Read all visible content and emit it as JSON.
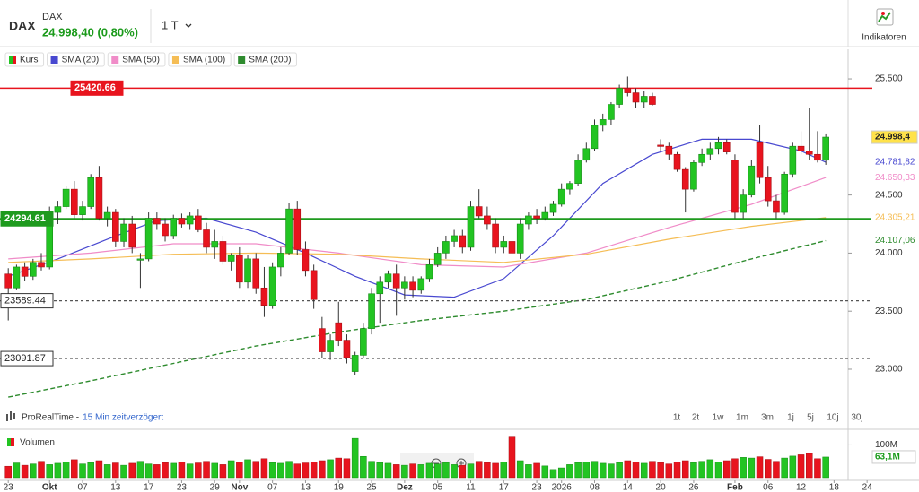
{
  "header": {
    "symbol": "DAX",
    "name": "DAX",
    "quote": "24.998,40 (0,80%)",
    "interval": "1 T",
    "indicators": "Indikatoren"
  },
  "footer": {
    "source": "ProRealTime -",
    "delay": "15 Min zeitverzögert",
    "periods": [
      "1t",
      "2t",
      "1w",
      "1m",
      "3m",
      "1j",
      "5j",
      "10j",
      "30j"
    ]
  },
  "chart_data": {
    "type": "candlestick",
    "price": {
      "name": "Kurs",
      "up_color": "#22c422",
      "down_color": "#e8141e",
      "ohlc": [
        [
          23820,
          23870,
          23420,
          23700
        ],
        [
          23700,
          23900,
          23680,
          23880
        ],
        [
          23880,
          23920,
          23760,
          23800
        ],
        [
          23800,
          23950,
          23770,
          23920
        ],
        [
          23920,
          24000,
          23850,
          23880
        ],
        [
          23880,
          24400,
          23860,
          24350
        ],
        [
          24350,
          24450,
          24250,
          24400
        ],
        [
          24400,
          24580,
          24380,
          24550
        ],
        [
          24550,
          24620,
          24300,
          24330
        ],
        [
          24330,
          24450,
          24280,
          24400
        ],
        [
          24400,
          24680,
          24380,
          24650
        ],
        [
          24650,
          24750,
          24280,
          24300
        ],
        [
          24300,
          24400,
          24230,
          24350
        ],
        [
          24350,
          24380,
          24050,
          24100
        ],
        [
          24100,
          24300,
          24050,
          24250
        ],
        [
          24250,
          24320,
          24000,
          24050
        ],
        [
          23950,
          24000,
          23700,
          23950
        ],
        [
          23950,
          24350,
          23930,
          24300
        ],
        [
          24300,
          24350,
          24200,
          24250
        ],
        [
          24250,
          24300,
          24100,
          24150
        ],
        [
          24150,
          24330,
          24120,
          24300
        ],
        [
          24300,
          24340,
          24220,
          24250
        ],
        [
          24250,
          24350,
          24200,
          24320
        ],
        [
          24320,
          24380,
          24180,
          24200
        ],
        [
          24200,
          24260,
          24000,
          24050
        ],
        [
          24050,
          24200,
          23950,
          24100
        ],
        [
          24100,
          24150,
          23900,
          23930
        ],
        [
          23930,
          24000,
          23850,
          23980
        ],
        [
          23980,
          24050,
          23700,
          23750
        ],
        [
          23750,
          23980,
          23700,
          23950
        ],
        [
          23950,
          24000,
          23650,
          23700
        ],
        [
          23700,
          23880,
          23450,
          23550
        ],
        [
          23550,
          23920,
          23520,
          23880
        ],
        [
          23880,
          24050,
          23800,
          24000
        ],
        [
          24000,
          24430,
          23980,
          24380
        ],
        [
          24380,
          24450,
          23980,
          24030
        ],
        [
          24030,
          24100,
          23800,
          23850
        ],
        [
          23850,
          23900,
          23520,
          23600
        ],
        [
          23350,
          23450,
          23100,
          23150
        ],
        [
          23150,
          23300,
          23080,
          23250
        ],
        [
          23400,
          23580,
          23200,
          23250
        ],
        [
          23250,
          23300,
          23050,
          23100
        ],
        [
          22980,
          23150,
          22950,
          23120
        ],
        [
          23120,
          23400,
          23100,
          23350
        ],
        [
          23350,
          23700,
          23300,
          23650
        ],
        [
          23650,
          23800,
          23400,
          23750
        ],
        [
          23750,
          23850,
          23700,
          23820
        ],
        [
          23820,
          23900,
          23460,
          23700
        ],
        [
          23700,
          23800,
          23600,
          23750
        ],
        [
          23750,
          23800,
          23620,
          23680
        ],
        [
          23680,
          23800,
          23650,
          23780
        ],
        [
          23780,
          23950,
          23750,
          23900
        ],
        [
          23900,
          24050,
          23880,
          24000
        ],
        [
          24000,
          24150,
          23950,
          24100
        ],
        [
          24100,
          24200,
          24050,
          24150
        ],
        [
          24150,
          24200,
          24000,
          24050
        ],
        [
          24050,
          24450,
          24020,
          24400
        ],
        [
          24400,
          24550,
          24300,
          24320
        ],
        [
          24320,
          24400,
          24200,
          24250
        ],
        [
          24250,
          24300,
          24000,
          24050
        ],
        [
          24050,
          24150,
          24000,
          24100
        ],
        [
          24100,
          24150,
          23950,
          24000
        ],
        [
          24000,
          24300,
          23950,
          24250
        ],
        [
          24250,
          24350,
          24200,
          24320
        ],
        [
          24320,
          24380,
          24250,
          24300
        ],
        [
          24300,
          24400,
          24280,
          24350
        ],
        [
          24350,
          24450,
          24320,
          24420
        ],
        [
          24420,
          24600,
          24400,
          24550
        ],
        [
          24550,
          24620,
          24500,
          24600
        ],
        [
          24600,
          24850,
          24580,
          24800
        ],
        [
          24800,
          24950,
          24780,
          24900
        ],
        [
          24900,
          25150,
          24880,
          25100
        ],
        [
          25100,
          25200,
          25050,
          25150
        ],
        [
          25150,
          25300,
          25100,
          25280
        ],
        [
          25280,
          25450,
          25250,
          25420
        ],
        [
          25420,
          25520,
          25350,
          25380
        ],
        [
          25380,
          25420,
          25250,
          25300
        ],
        [
          25300,
          25400,
          25250,
          25350
        ],
        [
          25350,
          25380,
          25270,
          25280
        ],
        [
          24930,
          24980,
          24880,
          24920
        ],
        [
          24920,
          24950,
          24800,
          24850
        ],
        [
          24850,
          24870,
          24700,
          24720
        ],
        [
          24720,
          24740,
          24350,
          24550
        ],
        [
          24550,
          24800,
          24530,
          24780
        ],
        [
          24780,
          24900,
          24750,
          24850
        ],
        [
          24850,
          24950,
          24800,
          24900
        ],
        [
          24900,
          25000,
          24850,
          24950
        ],
        [
          24950,
          24980,
          24850,
          24870
        ],
        [
          24800,
          24850,
          24300,
          24350
        ],
        [
          24350,
          24550,
          24300,
          24500
        ],
        [
          24500,
          24800,
          24480,
          24750
        ],
        [
          24950,
          25100,
          24600,
          24650
        ],
        [
          24650,
          24750,
          24400,
          24450
        ],
        [
          24450,
          24500,
          24300,
          24350
        ],
        [
          24350,
          24700,
          24330,
          24680
        ],
        [
          24680,
          24950,
          24650,
          24920
        ],
        [
          24920,
          25050,
          24850,
          24880
        ],
        [
          24880,
          25250,
          24800,
          24850
        ],
        [
          24850,
          25050,
          24780,
          24800
        ],
        [
          24800,
          25030,
          24760,
          24998.4
        ]
      ]
    },
    "last_price": {
      "value": 24998.4,
      "label": "24.998,4"
    },
    "series": [
      {
        "name": "SMA (20)",
        "color": "#4848d0",
        "x": [
          0,
          6,
          12,
          18,
          24,
          30,
          36,
          42,
          48,
          54,
          60,
          66,
          72,
          78,
          84,
          90,
          96,
          99
        ],
        "values": [
          23800,
          23950,
          24120,
          24280,
          24300,
          24180,
          24000,
          23800,
          23640,
          23620,
          23780,
          24150,
          24600,
          24850,
          24980,
          24980,
          24880,
          24781.82
        ],
        "last_label": "24.781,82"
      },
      {
        "name": "SMA (50)",
        "color": "#f08cc8",
        "x": [
          0,
          10,
          20,
          30,
          40,
          50,
          60,
          70,
          80,
          90,
          99
        ],
        "values": [
          23950,
          24000,
          24080,
          24080,
          24000,
          23900,
          23880,
          24000,
          24220,
          24420,
          24650.33
        ],
        "last_label": "24.650,33"
      },
      {
        "name": "SMA (100)",
        "color": "#f5bd55",
        "x": [
          0,
          10,
          20,
          30,
          40,
          50,
          60,
          70,
          80,
          90,
          99
        ],
        "values": [
          23920,
          23950,
          23990,
          24000,
          23990,
          23950,
          23920,
          23990,
          24120,
          24230,
          24305.21
        ],
        "last_label": "24.305,21"
      },
      {
        "name": "SMA (200)",
        "color": "#2e8b2e",
        "dashed": true,
        "x": [
          0,
          10,
          20,
          30,
          40,
          50,
          60,
          70,
          80,
          90,
          99
        ],
        "values": [
          22760,
          22900,
          23050,
          23200,
          23320,
          23420,
          23500,
          23600,
          23760,
          23950,
          24107.06
        ],
        "last_label": "24.107,06"
      }
    ],
    "levels": [
      {
        "value": 25420.66,
        "color": "#e8141e",
        "style": "solid"
      },
      {
        "value": 24294.61,
        "color": "#1e9a1e",
        "style": "solid"
      },
      {
        "value": 23589.44,
        "color": "#555555",
        "style": "dashed"
      },
      {
        "value": 23091.87,
        "color": "#555555",
        "style": "dashed"
      }
    ],
    "ylim": [
      22668,
      25755
    ],
    "yticks": [
      {
        "value": 25500,
        "label": "25.500"
      },
      {
        "value": 24500,
        "label": "24.500"
      },
      {
        "value": 24000,
        "label": "24.000"
      },
      {
        "value": 23500,
        "label": "23.500"
      },
      {
        "value": 23000,
        "label": "23.000"
      }
    ],
    "xlim": [
      -1,
      101.7
    ],
    "xticks": [
      {
        "value": 0,
        "label": "23"
      },
      {
        "value": 5,
        "label": "Okt"
      },
      {
        "value": 9,
        "label": "07"
      },
      {
        "value": 13,
        "label": "13"
      },
      {
        "value": 17,
        "label": "17"
      },
      {
        "value": 21,
        "label": "23"
      },
      {
        "value": 25,
        "label": "29"
      },
      {
        "value": 28,
        "label": "Nov"
      },
      {
        "value": 32,
        "label": "07"
      },
      {
        "value": 36,
        "label": "13"
      },
      {
        "value": 40,
        "label": "19"
      },
      {
        "value": 44,
        "label": "25"
      },
      {
        "value": 48,
        "label": "Dez"
      },
      {
        "value": 52,
        "label": "05"
      },
      {
        "value": 56,
        "label": "11"
      },
      {
        "value": 60,
        "label": "17"
      },
      {
        "value": 64,
        "label": "23"
      },
      {
        "value": 67,
        "label": "2026"
      },
      {
        "value": 71,
        "label": "08"
      },
      {
        "value": 75,
        "label": "14"
      },
      {
        "value": 79,
        "label": "20"
      },
      {
        "value": 83,
        "label": "26"
      },
      {
        "value": 88,
        "label": "Feb"
      },
      {
        "value": 92,
        "label": "06"
      },
      {
        "value": 96,
        "label": "12"
      },
      {
        "value": 100,
        "label": "18"
      },
      {
        "value": 104,
        "label": "24"
      }
    ],
    "volume": {
      "title": "Volumen",
      "ylim": [
        0,
        145
      ],
      "yticks": [
        {
          "value": 100,
          "label": "100M"
        }
      ],
      "last": {
        "value": 63.1,
        "label": "63,1M"
      },
      "values": [
        35,
        45,
        38,
        42,
        50,
        40,
        44,
        48,
        55,
        42,
        46,
        52,
        40,
        45,
        38,
        44,
        50,
        42,
        40,
        46,
        44,
        48,
        42,
        45,
        50,
        44,
        40,
        52,
        48,
        55,
        50,
        58,
        46,
        44,
        50,
        42,
        45,
        48,
        52,
        55,
        60,
        58,
        120,
        65,
        50,
        46,
        44,
        40,
        38,
        42,
        40,
        44,
        42,
        46,
        40,
        38,
        42,
        50,
        46,
        44,
        48,
        124,
        52,
        40,
        44,
        36,
        25,
        30,
        40,
        46,
        48,
        50,
        44,
        42,
        46,
        52,
        48,
        44,
        50,
        46,
        42,
        48,
        52,
        46,
        50,
        55,
        48,
        52,
        58,
        62,
        60,
        64,
        56,
        50,
        60,
        66,
        70,
        74,
        58,
        63.1
      ]
    }
  }
}
